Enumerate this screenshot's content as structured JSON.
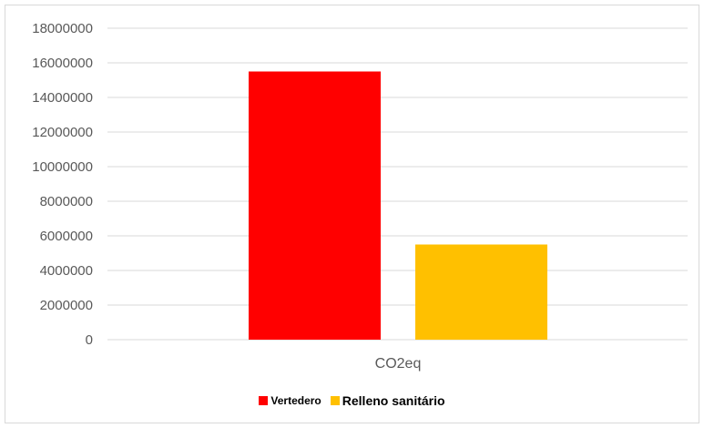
{
  "chart_data": {
    "type": "bar",
    "categories": [
      "CO2eq"
    ],
    "series": [
      {
        "name": "Vertedero",
        "values": [
          15500000
        ],
        "color": "#ff0000"
      },
      {
        "name": "Relleno sanitário",
        "values": [
          5500000
        ],
        "color": "#ffc000"
      }
    ],
    "ylim": [
      0,
      18000000
    ],
    "yticks": [
      0,
      2000000,
      4000000,
      6000000,
      8000000,
      10000000,
      12000000,
      14000000,
      16000000,
      18000000
    ],
    "ytick_labels": [
      "0",
      "2000000",
      "4000000",
      "6000000",
      "8000000",
      "10000000",
      "12000000",
      "14000000",
      "16000000",
      "18000000"
    ],
    "grid": true,
    "legend_position": "bottom",
    "title": "",
    "xlabel": "",
    "ylabel": ""
  }
}
